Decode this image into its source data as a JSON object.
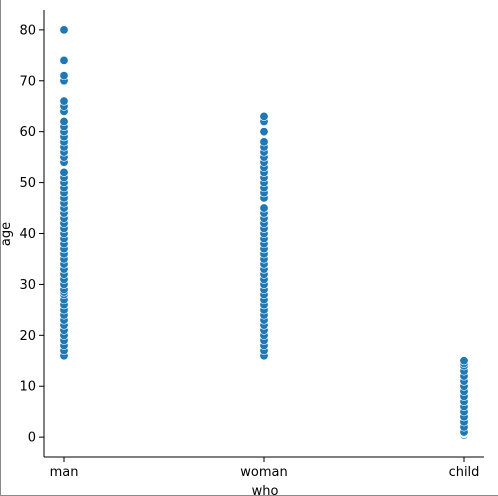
{
  "chart_data": {
    "type": "scatter",
    "title": "",
    "xlabel": "who",
    "ylabel": "age",
    "categories": [
      "man",
      "woman",
      "child"
    ],
    "ylim": [
      -3.9,
      83.9
    ],
    "yticks": [
      0,
      10,
      20,
      30,
      40,
      50,
      60,
      70,
      80
    ],
    "grid": false,
    "legend": "none",
    "marker_color": "#1f77b4",
    "marker_edge": "#ffffff",
    "series": [
      {
        "category": "man",
        "values": [
          16,
          17,
          18,
          19,
          20,
          21,
          22,
          23,
          24,
          25,
          26,
          27,
          28,
          28.5,
          29,
          30,
          31,
          32,
          33,
          34,
          35,
          36,
          37,
          38,
          39,
          40,
          41,
          42,
          43,
          44,
          45,
          46,
          47,
          48,
          49,
          50,
          51,
          52,
          54,
          55,
          56,
          57,
          58,
          59,
          60,
          61,
          62,
          64,
          65,
          66,
          70,
          71,
          74,
          80
        ]
      },
      {
        "category": "woman",
        "values": [
          16,
          17,
          18,
          19,
          20,
          21,
          22,
          23,
          24,
          25,
          26,
          27,
          28,
          29,
          30,
          31,
          32,
          33,
          34,
          35,
          36,
          37,
          38,
          39,
          40,
          41,
          42,
          43,
          44,
          45,
          47,
          48,
          49,
          50,
          51,
          52,
          53,
          54,
          55,
          56,
          57,
          58,
          60,
          62,
          63
        ]
      },
      {
        "category": "child",
        "values": [
          0.42,
          0.67,
          0.75,
          0.83,
          0.92,
          1,
          2,
          3,
          4,
          5,
          6,
          7,
          8,
          9,
          10,
          11,
          12,
          13,
          14,
          14.5,
          15
        ]
      }
    ]
  }
}
